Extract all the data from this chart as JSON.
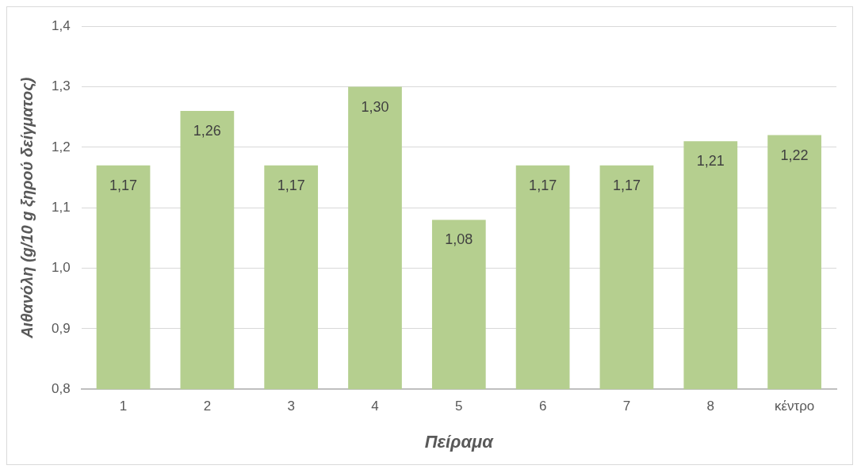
{
  "chart_data": {
    "type": "bar",
    "xlabel": "Πείραμα",
    "ylabel": "Αιθανόλη (g/10 g ξηρού δείγματος)",
    "categories": [
      "1",
      "2",
      "3",
      "4",
      "5",
      "6",
      "7",
      "8",
      "κέντρο"
    ],
    "values": [
      1.17,
      1.26,
      1.17,
      1.3,
      1.08,
      1.17,
      1.17,
      1.21,
      1.22
    ],
    "value_labels": [
      "1,17",
      "1,26",
      "1,17",
      "1,30",
      "1,08",
      "1,17",
      "1,17",
      "1,21",
      "1,22"
    ],
    "color": "#b5cf8f",
    "ylim": [
      0.8,
      1.4
    ],
    "yticks": [
      {
        "value": 0.8,
        "label": "0,8"
      },
      {
        "value": 0.9,
        "label": "0,9"
      },
      {
        "value": 1.0,
        "label": "1,0"
      },
      {
        "value": 1.1,
        "label": "1,1"
      },
      {
        "value": 1.2,
        "label": "1,2"
      },
      {
        "value": 1.3,
        "label": "1,3"
      },
      {
        "value": 1.4,
        "label": "1,4"
      }
    ],
    "grid": "y",
    "legend": false
  }
}
